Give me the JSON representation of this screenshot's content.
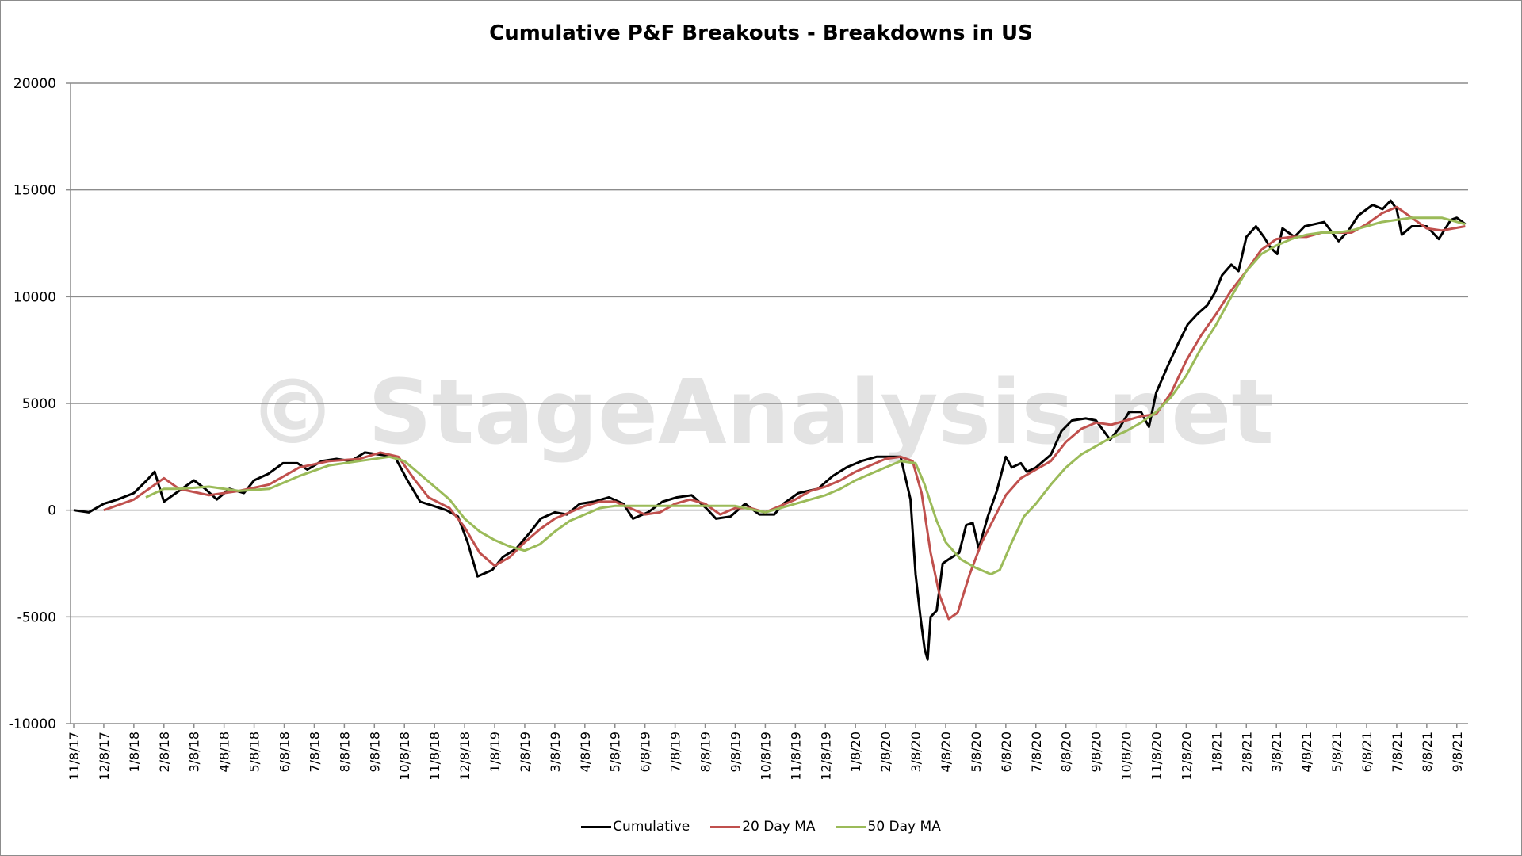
{
  "chart_data": {
    "type": "line",
    "title": "Cumulative P&F Breakouts - Breakdowns in US",
    "watermark": "© StageAnalysis.net",
    "xlabel": "",
    "ylabel": "",
    "ylim": [
      -10000,
      20000
    ],
    "yticks": [
      "20000",
      "15000",
      "10000",
      "5000",
      "0",
      "-5000",
      "-10000"
    ],
    "ytick_values": [
      20000,
      15000,
      10000,
      5000,
      0,
      -5000,
      -10000
    ],
    "grid": true,
    "legend_position": "bottom",
    "x_units": "category index (months since 11/8/17)",
    "categories": [
      "11/8/17",
      "12/8/17",
      "1/8/18",
      "2/8/18",
      "3/8/18",
      "4/8/18",
      "5/8/18",
      "6/8/18",
      "7/8/18",
      "8/8/18",
      "9/8/18",
      "10/8/18",
      "11/8/18",
      "12/8/18",
      "1/8/19",
      "2/8/19",
      "3/8/19",
      "4/8/19",
      "5/8/19",
      "6/8/19",
      "7/8/19",
      "8/8/19",
      "9/8/19",
      "10/8/19",
      "11/8/19",
      "12/8/19",
      "1/8/20",
      "2/8/20",
      "3/8/20",
      "4/8/20",
      "5/8/20",
      "6/8/20",
      "7/8/20",
      "8/8/20",
      "9/8/20",
      "10/8/20",
      "11/8/20",
      "12/8/20",
      "1/8/21",
      "2/8/21",
      "3/8/21",
      "4/8/21",
      "5/8/21",
      "6/8/21",
      "7/8/21",
      "8/8/21",
      "9/8/21"
    ],
    "series": [
      {
        "name": "Cumulative",
        "color": "#000000",
        "points": [
          [
            0,
            0
          ],
          [
            0.5,
            -100
          ],
          [
            1,
            300
          ],
          [
            1.46,
            500
          ],
          [
            2,
            800
          ],
          [
            2.43,
            1400
          ],
          [
            2.69,
            1800
          ],
          [
            3,
            400
          ],
          [
            3.5,
            900
          ],
          [
            4,
            1400
          ],
          [
            4.37,
            1000
          ],
          [
            4.76,
            500
          ],
          [
            5.18,
            1000
          ],
          [
            5.66,
            800
          ],
          [
            6,
            1400
          ],
          [
            6.47,
            1700
          ],
          [
            6.96,
            2200
          ],
          [
            7.44,
            2200
          ],
          [
            7.77,
            1900
          ],
          [
            8.25,
            2300
          ],
          [
            8.74,
            2400
          ],
          [
            9.22,
            2300
          ],
          [
            9.68,
            2700
          ],
          [
            10.19,
            2600
          ],
          [
            10.68,
            2500
          ],
          [
            11.1,
            1400
          ],
          [
            11.52,
            400
          ],
          [
            11.97,
            200
          ],
          [
            12.39,
            0
          ],
          [
            12.78,
            -300
          ],
          [
            13.1,
            -1500
          ],
          [
            13.43,
            -3100
          ],
          [
            13.92,
            -2800
          ],
          [
            14.27,
            -2200
          ],
          [
            14.72,
            -1800
          ],
          [
            15.2,
            -1000
          ],
          [
            15.53,
            -400
          ],
          [
            16,
            -100
          ],
          [
            16.4,
            -200
          ],
          [
            16.83,
            300
          ],
          [
            17.3,
            400
          ],
          [
            17.8,
            600
          ],
          [
            18.28,
            300
          ],
          [
            18.6,
            -400
          ],
          [
            19.1,
            -100
          ],
          [
            19.58,
            400
          ],
          [
            20.06,
            600
          ],
          [
            20.55,
            700
          ],
          [
            21.03,
            100
          ],
          [
            21.36,
            -400
          ],
          [
            21.84,
            -300
          ],
          [
            22.33,
            300
          ],
          [
            22.8,
            -200
          ],
          [
            23.3,
            -200
          ],
          [
            23.6,
            300
          ],
          [
            24.1,
            800
          ],
          [
            24.75,
            1000
          ],
          [
            25.24,
            1600
          ],
          [
            25.7,
            2000
          ],
          [
            26.2,
            2300
          ],
          [
            26.7,
            2500
          ],
          [
            27.2,
            2500
          ],
          [
            27.5,
            2500
          ],
          [
            27.83,
            500
          ],
          [
            28,
            -3000
          ],
          [
            28.16,
            -5000
          ],
          [
            28.3,
            -6500
          ],
          [
            28.4,
            -7000
          ],
          [
            28.5,
            -5000
          ],
          [
            28.7,
            -4700
          ],
          [
            28.9,
            -2500
          ],
          [
            29.1,
            -2300
          ],
          [
            29.45,
            -2000
          ],
          [
            29.68,
            -700
          ],
          [
            29.9,
            -600
          ],
          [
            30.1,
            -1800
          ],
          [
            30.4,
            -300
          ],
          [
            30.7,
            900
          ],
          [
            31,
            2500
          ],
          [
            31.2,
            2000
          ],
          [
            31.5,
            2200
          ],
          [
            31.7,
            1800
          ],
          [
            32,
            2000
          ],
          [
            32.5,
            2600
          ],
          [
            32.85,
            3700
          ],
          [
            33.2,
            4200
          ],
          [
            33.66,
            4300
          ],
          [
            34,
            4200
          ],
          [
            34.47,
            3300
          ],
          [
            34.8,
            3900
          ],
          [
            35.1,
            4600
          ],
          [
            35.5,
            4600
          ],
          [
            35.76,
            3900
          ],
          [
            36,
            5500
          ],
          [
            36.4,
            6800
          ],
          [
            36.73,
            7800
          ],
          [
            37.05,
            8700
          ],
          [
            37.38,
            9200
          ],
          [
            37.7,
            9600
          ],
          [
            37.96,
            10200
          ],
          [
            38.19,
            11000
          ],
          [
            38.5,
            11500
          ],
          [
            38.74,
            11200
          ],
          [
            39,
            12800
          ],
          [
            39.32,
            13300
          ],
          [
            39.58,
            12800
          ],
          [
            39.8,
            12300
          ],
          [
            40.03,
            12000
          ],
          [
            40.2,
            13200
          ],
          [
            40.6,
            12800
          ],
          [
            40.94,
            13300
          ],
          [
            41.26,
            13400
          ],
          [
            41.59,
            13500
          ],
          [
            42.07,
            12600
          ],
          [
            42.4,
            13100
          ],
          [
            42.72,
            13800
          ],
          [
            43.2,
            14300
          ],
          [
            43.53,
            14100
          ],
          [
            43.8,
            14500
          ],
          [
            44,
            14100
          ],
          [
            44.17,
            12900
          ],
          [
            44.5,
            13300
          ],
          [
            45,
            13300
          ],
          [
            45.4,
            12700
          ],
          [
            45.8,
            13600
          ],
          [
            46,
            13700
          ],
          [
            46.28,
            13400
          ]
        ]
      },
      {
        "name": "20 Day MA",
        "color": "#c0504d",
        "points": [
          [
            1,
            0
          ],
          [
            2,
            500
          ],
          [
            3,
            1500
          ],
          [
            3.5,
            1000
          ],
          [
            4.5,
            700
          ],
          [
            5.5,
            900
          ],
          [
            6.5,
            1200
          ],
          [
            7.5,
            2000
          ],
          [
            8.5,
            2300
          ],
          [
            9.5,
            2400
          ],
          [
            10.2,
            2700
          ],
          [
            10.8,
            2500
          ],
          [
            11.3,
            1500
          ],
          [
            11.8,
            600
          ],
          [
            12.5,
            100
          ],
          [
            13,
            -800
          ],
          [
            13.5,
            -2000
          ],
          [
            14,
            -2600
          ],
          [
            14.5,
            -2200
          ],
          [
            15,
            -1500
          ],
          [
            15.5,
            -900
          ],
          [
            16,
            -400
          ],
          [
            16.5,
            -100
          ],
          [
            17,
            200
          ],
          [
            17.5,
            400
          ],
          [
            18,
            400
          ],
          [
            18.5,
            100
          ],
          [
            19,
            -200
          ],
          [
            19.5,
            -100
          ],
          [
            20,
            300
          ],
          [
            20.5,
            500
          ],
          [
            21,
            300
          ],
          [
            21.5,
            -200
          ],
          [
            22,
            100
          ],
          [
            22.5,
            100
          ],
          [
            23,
            -100
          ],
          [
            23.5,
            200
          ],
          [
            24,
            500
          ],
          [
            24.5,
            900
          ],
          [
            25,
            1100
          ],
          [
            25.5,
            1400
          ],
          [
            26,
            1800
          ],
          [
            26.5,
            2100
          ],
          [
            27,
            2400
          ],
          [
            27.5,
            2500
          ],
          [
            27.9,
            2300
          ],
          [
            28.2,
            800
          ],
          [
            28.5,
            -2000
          ],
          [
            28.8,
            -4000
          ],
          [
            29.1,
            -5100
          ],
          [
            29.4,
            -4800
          ],
          [
            29.8,
            -3000
          ],
          [
            30.2,
            -1500
          ],
          [
            30.6,
            -400
          ],
          [
            31,
            700
          ],
          [
            31.5,
            1500
          ],
          [
            32,
            1900
          ],
          [
            32.5,
            2300
          ],
          [
            33,
            3200
          ],
          [
            33.5,
            3800
          ],
          [
            34,
            4100
          ],
          [
            34.5,
            4000
          ],
          [
            35,
            4200
          ],
          [
            35.5,
            4400
          ],
          [
            36,
            4500
          ],
          [
            36.5,
            5500
          ],
          [
            37,
            7000
          ],
          [
            37.5,
            8200
          ],
          [
            38,
            9200
          ],
          [
            38.5,
            10300
          ],
          [
            39,
            11200
          ],
          [
            39.5,
            12200
          ],
          [
            40,
            12700
          ],
          [
            40.5,
            12800
          ],
          [
            41,
            12800
          ],
          [
            41.5,
            13000
          ],
          [
            42,
            13000
          ],
          [
            42.5,
            13000
          ],
          [
            43,
            13400
          ],
          [
            43.5,
            13900
          ],
          [
            44,
            14200
          ],
          [
            44.5,
            13700
          ],
          [
            45,
            13200
          ],
          [
            45.5,
            13100
          ],
          [
            46.28,
            13300
          ]
        ]
      },
      {
        "name": "50 Day MA",
        "color": "#9bbb59",
        "points": [
          [
            2.4,
            600
          ],
          [
            3,
            1000
          ],
          [
            3.5,
            1000
          ],
          [
            4.5,
            1100
          ],
          [
            5.5,
            900
          ],
          [
            6.5,
            1000
          ],
          [
            7.5,
            1600
          ],
          [
            8.5,
            2100
          ],
          [
            9.5,
            2300
          ],
          [
            10.5,
            2500
          ],
          [
            11,
            2300
          ],
          [
            11.5,
            1700
          ],
          [
            12,
            1100
          ],
          [
            12.5,
            500
          ],
          [
            13,
            -400
          ],
          [
            13.5,
            -1000
          ],
          [
            14,
            -1400
          ],
          [
            14.5,
            -1700
          ],
          [
            15,
            -1900
          ],
          [
            15.5,
            -1600
          ],
          [
            16,
            -1000
          ],
          [
            16.5,
            -500
          ],
          [
            17,
            -200
          ],
          [
            17.5,
            100
          ],
          [
            18,
            200
          ],
          [
            18.5,
            200
          ],
          [
            19,
            200
          ],
          [
            20,
            200
          ],
          [
            21,
            200
          ],
          [
            22,
            200
          ],
          [
            23,
            -100
          ],
          [
            23.5,
            100
          ],
          [
            24,
            300
          ],
          [
            24.5,
            500
          ],
          [
            25,
            700
          ],
          [
            25.5,
            1000
          ],
          [
            26,
            1400
          ],
          [
            26.5,
            1700
          ],
          [
            27,
            2000
          ],
          [
            27.5,
            2300
          ],
          [
            28,
            2200
          ],
          [
            28.3,
            1200
          ],
          [
            28.7,
            -500
          ],
          [
            29,
            -1500
          ],
          [
            29.5,
            -2300
          ],
          [
            30,
            -2700
          ],
          [
            30.5,
            -3000
          ],
          [
            30.8,
            -2800
          ],
          [
            31.2,
            -1500
          ],
          [
            31.6,
            -300
          ],
          [
            32,
            300
          ],
          [
            32.5,
            1200
          ],
          [
            33,
            2000
          ],
          [
            33.5,
            2600
          ],
          [
            34,
            3000
          ],
          [
            34.5,
            3400
          ],
          [
            35,
            3700
          ],
          [
            35.5,
            4100
          ],
          [
            36,
            4600
          ],
          [
            36.5,
            5300
          ],
          [
            37,
            6300
          ],
          [
            37.5,
            7600
          ],
          [
            38,
            8700
          ],
          [
            38.5,
            10000
          ],
          [
            39,
            11200
          ],
          [
            39.5,
            12000
          ],
          [
            40,
            12400
          ],
          [
            40.5,
            12700
          ],
          [
            41,
            12900
          ],
          [
            41.5,
            13000
          ],
          [
            42,
            13000
          ],
          [
            42.5,
            13100
          ],
          [
            43,
            13300
          ],
          [
            43.5,
            13500
          ],
          [
            44,
            13600
          ],
          [
            44.5,
            13700
          ],
          [
            45,
            13700
          ],
          [
            45.5,
            13700
          ],
          [
            46.28,
            13400
          ]
        ]
      }
    ]
  }
}
